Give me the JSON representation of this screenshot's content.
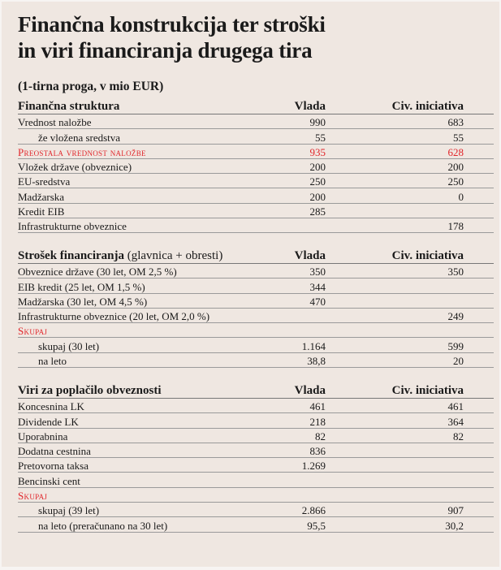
{
  "title_line1": "Finančna konstrukcija ter stroški",
  "title_line2": "in viri financiranja drugega tira",
  "subtitle": "(1-tirna proga, v mio EUR)",
  "accent_color": "#e1262b",
  "sections": [
    {
      "header": "Finančna struktura",
      "header_note": "",
      "col_vlada": "Vlada",
      "col_civ": "Civ. iniciativa",
      "rows": [
        {
          "label": "Vrednost naložbe",
          "vlada": "990",
          "civ": "683",
          "style": "normal"
        },
        {
          "label": "že vložena sredstva",
          "vlada": "55",
          "civ": "55",
          "style": "indent"
        },
        {
          "label": "Preostala vrednost naložbe",
          "vlada": "935",
          "civ": "628",
          "style": "red"
        },
        {
          "label": "Vložek države (obveznice)",
          "vlada": "200",
          "civ": "200",
          "style": "normal"
        },
        {
          "label": "EU-sredstva",
          "vlada": "250",
          "civ": "250",
          "style": "normal"
        },
        {
          "label": "Madžarska",
          "vlada": "200",
          "civ": "0",
          "style": "normal"
        },
        {
          "label": "Kredit EIB",
          "vlada": "285",
          "civ": "",
          "style": "normal"
        },
        {
          "label": "Infrastrukturne obveznice",
          "vlada": "",
          "civ": "178",
          "style": "normal"
        }
      ]
    },
    {
      "header": "Strošek financiranja",
      "header_note": "(glavnica + obresti)",
      "col_vlada": "Vlada",
      "col_civ": "Civ. iniciativa",
      "rows": [
        {
          "label": "Obveznice države (30 let, OM 2,5 %)",
          "vlada": "350",
          "civ": "350",
          "style": "normal"
        },
        {
          "label": "EIB kredit (25 let, OM 1,5 %)",
          "vlada": "344",
          "civ": "",
          "style": "normal"
        },
        {
          "label": "Madžarska (30 let, OM 4,5 %)",
          "vlada": "470",
          "civ": "",
          "style": "normal"
        },
        {
          "label": "Infrastrukturne obveznice (20 let, OM 2,0 %)",
          "vlada": "",
          "civ": "249",
          "style": "normal"
        },
        {
          "label": "Skupaj",
          "vlada": "",
          "civ": "",
          "style": "red"
        },
        {
          "label": "skupaj (30 let)",
          "vlada": "1.164",
          "civ": "599",
          "style": "indent"
        },
        {
          "label": "na leto",
          "vlada": "38,8",
          "civ": "20",
          "style": "indent"
        }
      ]
    },
    {
      "header": "Viri za poplačilo obveznosti",
      "header_note": "",
      "col_vlada": "Vlada",
      "col_civ": "Civ. iniciativa",
      "rows": [
        {
          "label": "Koncesnina LK",
          "vlada": "461",
          "civ": "461",
          "style": "normal"
        },
        {
          "label": "Dividende LK",
          "vlada": "218",
          "civ": "364",
          "style": "normal"
        },
        {
          "label": "Uporabnina",
          "vlada": "82",
          "civ": "82",
          "style": "normal"
        },
        {
          "label": "Dodatna cestnina",
          "vlada": "836",
          "civ": "",
          "style": "normal"
        },
        {
          "label": "Pretovorna taksa",
          "vlada": "1.269",
          "civ": "",
          "style": "normal"
        },
        {
          "label": "Bencinski cent",
          "vlada": "",
          "civ": "",
          "style": "normal"
        },
        {
          "label": "Skupaj",
          "vlada": "",
          "civ": "",
          "style": "red"
        },
        {
          "label": "skupaj (39 let)",
          "vlada": "2.866",
          "civ": "907",
          "style": "indent"
        },
        {
          "label": "na leto (preračunano na 30 let)",
          "vlada": "95,5",
          "civ": "30,2",
          "style": "indent"
        }
      ]
    }
  ]
}
